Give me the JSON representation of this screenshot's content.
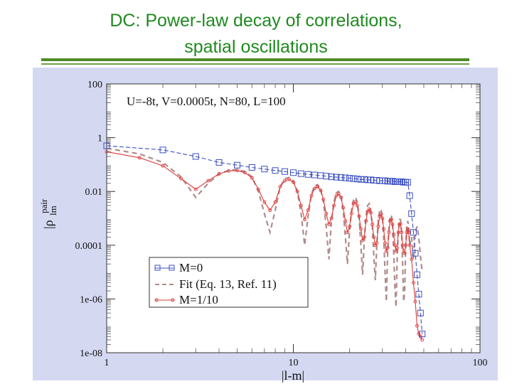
{
  "slide": {
    "title_line1": "DC: Power-law decay of correlations,",
    "title_line2": "spatial oscillations"
  },
  "colors": {
    "title": "#1f8a1f",
    "rule": "#4f8a2a",
    "panel": "#d4d8f1",
    "m0": "#3b4fc0",
    "fit": "#b08c8c",
    "m110": "#e03838"
  },
  "chart_data": {
    "type": "line",
    "xscale": "log",
    "yscale": "log",
    "xlim": [
      1,
      100
    ],
    "ylim": [
      1e-08,
      100
    ],
    "xlabel": "|l-m|",
    "ylabel_main": "|ρ",
    "ylabel_sub": "lm",
    "ylabel_sup": "pair",
    "x_ticks": [
      {
        "value": 1,
        "label": "1"
      },
      {
        "value": 10,
        "label": "10"
      },
      {
        "value": 100,
        "label": "100"
      }
    ],
    "y_ticks": [
      {
        "value": 100,
        "label": "100"
      },
      {
        "value": 1,
        "label": "1"
      },
      {
        "value": 0.01,
        "label": "0.01"
      },
      {
        "value": 0.0001,
        "label": "0.0001"
      },
      {
        "value": 1e-06,
        "label": "1e-06"
      },
      {
        "value": 1e-08,
        "label": "1e-08"
      }
    ],
    "annotation": "U=-8t, V=0.0005t, N=80, L=100",
    "legend_position": "lower-left",
    "series": [
      {
        "name": "M=0",
        "style": "line-square",
        "color": "#3b4fc0",
        "x": [
          1,
          2,
          3,
          4,
          5,
          6,
          7,
          8,
          9,
          10,
          11,
          12,
          13,
          14,
          15,
          16,
          17,
          18,
          19,
          20,
          21,
          22,
          23,
          24,
          25,
          26,
          27,
          28,
          29,
          30,
          31,
          32,
          33,
          34,
          35,
          36,
          37,
          38,
          39,
          40,
          41,
          42,
          43,
          44,
          45,
          46,
          47,
          48,
          49
        ],
        "y": [
          0.5,
          0.35,
          0.2,
          0.12,
          0.095,
          0.078,
          0.068,
          0.06,
          0.055,
          0.05,
          0.046,
          0.043,
          0.041,
          0.039,
          0.037,
          0.035,
          0.034,
          0.033,
          0.032,
          0.031,
          0.03,
          0.029,
          0.028,
          0.028,
          0.027,
          0.027,
          0.026,
          0.026,
          0.025,
          0.025,
          0.025,
          0.024,
          0.024,
          0.024,
          0.023,
          0.023,
          0.023,
          0.023,
          0.022,
          0.022,
          0.022,
          0.007,
          0.0015,
          0.0003,
          5e-05,
          8e-06,
          1.5e-06,
          3e-07,
          5e-08
        ]
      },
      {
        "name": "Fit (Eq. 13, Ref. 11)",
        "style": "dashed",
        "color": "#b08c8c",
        "x": [
          1,
          1.5,
          2,
          2.5,
          3,
          3.5,
          4,
          4.5,
          5,
          5.5,
          6,
          6.5,
          7,
          7.5,
          8,
          8.5,
          9,
          9.5,
          10,
          10.5,
          11,
          11.5,
          12,
          12.5,
          13,
          13.5,
          14,
          14.5,
          15,
          15.5,
          16,
          16.5,
          17,
          17.5,
          18,
          18.5,
          19,
          19.5,
          20,
          20.5,
          21,
          21.5,
          22,
          22.5,
          23,
          23.5,
          24,
          24.5,
          25,
          25.5,
          26,
          26.5,
          27,
          27.5,
          28,
          28.5,
          29,
          29.5,
          30,
          30.5,
          31,
          31.5,
          32,
          32.5,
          33,
          33.5,
          34,
          34.5,
          35,
          35.5,
          36,
          36.5,
          37,
          37.5,
          38,
          38.5,
          39,
          39.5,
          40,
          40.5,
          41,
          41.5,
          42,
          43,
          44,
          45,
          46,
          47,
          48,
          49
        ],
        "y": [
          0.4,
          0.25,
          0.12,
          0.035,
          0.006,
          0.02,
          0.045,
          0.06,
          0.065,
          0.055,
          0.035,
          0.01,
          0.0015,
          0.0003,
          0.002,
          0.015,
          0.03,
          0.033,
          0.025,
          0.01,
          0.0015,
          0.0001,
          0.0012,
          0.008,
          0.016,
          0.018,
          0.012,
          0.004,
          0.0005,
          3e-05,
          0.0008,
          0.004,
          0.009,
          0.01,
          0.007,
          0.002,
          0.0002,
          2e-05,
          0.0003,
          0.002,
          0.005,
          0.006,
          0.004,
          0.0012,
          0.0001,
          8e-06,
          0.00015,
          0.0012,
          0.003,
          0.0035,
          0.002,
          0.0005,
          4e-05,
          5e-06,
          0.0001,
          0.0008,
          0.002,
          0.0022,
          0.0012,
          0.0002,
          1e-05,
          8e-07,
          5e-05,
          0.0004,
          0.0012,
          0.0013,
          0.0006,
          5e-05,
          3e-06,
          5e-07,
          3e-05,
          0.0003,
          0.0009,
          0.0009,
          0.0003,
          2e-05,
          8e-07,
          2e-06,
          8e-05,
          0.0005,
          0.0008,
          0.0005,
          0.0001,
          0.0002,
          3e-05,
          0.0003,
          0.0005,
          0.0002,
          4e-05,
          1e-05
        ]
      },
      {
        "name": "M=1/10",
        "style": "line-circle",
        "color": "#e03838",
        "x": [
          1,
          1.5,
          2,
          2.5,
          3,
          3.5,
          4,
          4.5,
          5,
          5.5,
          6,
          6.5,
          7,
          7.5,
          8,
          8.5,
          9,
          9.5,
          10,
          10.5,
          11,
          11.5,
          12,
          12.5,
          13,
          13.5,
          14,
          14.5,
          15,
          15.5,
          16,
          16.5,
          17,
          17.5,
          18,
          18.5,
          19,
          19.5,
          20,
          20.5,
          21,
          21.5,
          22,
          22.5,
          23,
          23.5,
          24,
          24.5,
          25,
          25.5,
          26,
          26.5,
          27,
          27.5,
          28,
          28.5,
          29,
          29.5,
          30,
          30.5,
          31,
          31.5,
          32,
          32.5,
          33,
          33.5,
          34,
          34.5,
          35,
          35.5,
          36,
          36.5,
          37,
          37.5,
          38,
          38.5,
          39,
          39.5,
          40,
          40.5,
          41,
          41.5,
          42,
          43,
          44,
          45,
          46,
          47,
          48,
          49
        ],
        "y": [
          0.3,
          0.18,
          0.09,
          0.03,
          0.012,
          0.025,
          0.045,
          0.058,
          0.06,
          0.05,
          0.032,
          0.012,
          0.004,
          0.002,
          0.004,
          0.015,
          0.025,
          0.028,
          0.022,
          0.01,
          0.003,
          0.0009,
          0.002,
          0.007,
          0.013,
          0.015,
          0.011,
          0.005,
          0.0015,
          0.0006,
          0.001,
          0.003,
          0.007,
          0.008,
          0.006,
          0.0025,
          0.0008,
          0.0003,
          0.0005,
          0.0015,
          0.0035,
          0.004,
          0.003,
          0.0012,
          0.0004,
          0.00015,
          0.0002,
          0.0008,
          0.0018,
          0.0022,
          0.0016,
          0.0006,
          0.0002,
          0.0001,
          0.00012,
          0.0005,
          0.0012,
          0.0014,
          0.001,
          0.0004,
          0.00012,
          6e-05,
          8e-05,
          0.0003,
          0.0008,
          0.0009,
          0.0006,
          0.00025,
          0.0001,
          6e-05,
          8e-05,
          0.0003,
          0.0006,
          0.0006,
          0.0003,
          0.0001,
          6e-05,
          5e-05,
          0.0001,
          0.0003,
          0.0004,
          0.0003,
          0.0001,
          3e-05,
          4e-06,
          8e-07,
          1e-07,
          5e-08,
          4e-08,
          3e-08
        ]
      }
    ]
  }
}
